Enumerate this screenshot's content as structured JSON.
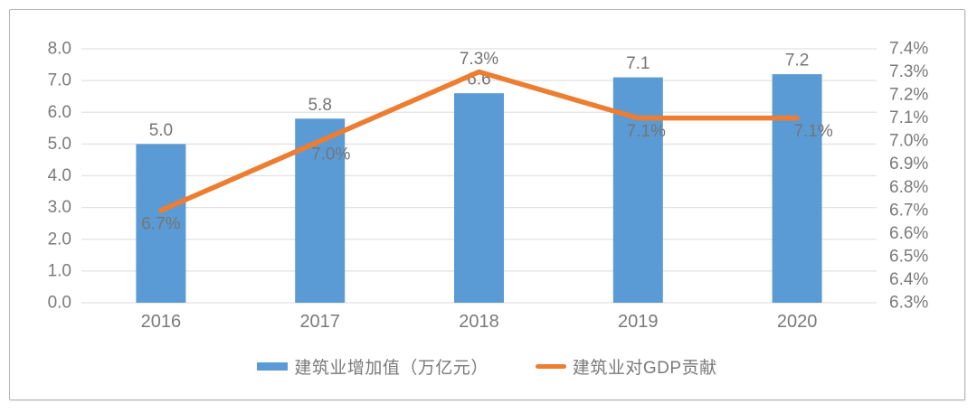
{
  "chart_data": {
    "type": "combo_bar_line",
    "categories": [
      "2016",
      "2017",
      "2018",
      "2019",
      "2020"
    ],
    "series": [
      {
        "name": "建筑业增加值（万亿元）",
        "type": "bar",
        "axis": "left",
        "color": "#5B9BD5",
        "values": [
          5.0,
          5.8,
          6.6,
          7.1,
          7.2
        ],
        "labels": [
          "5.0",
          "5.8",
          "6.6",
          "7.1",
          "7.2"
        ]
      },
      {
        "name": "建筑业对GDP贡献",
        "type": "line",
        "axis": "right",
        "color": "#ED7D31",
        "values": [
          6.7,
          7.0,
          7.3,
          7.1,
          7.1
        ],
        "labels": [
          "6.7%",
          "7.0%",
          "7.3%",
          "7.1%",
          "7.1%"
        ],
        "label_positions": [
          "below",
          "below",
          "above",
          "below",
          "below"
        ]
      }
    ],
    "left_axis": {
      "min": 0.0,
      "max": 8.0,
      "step": 1.0,
      "tick_labels": [
        "8.0",
        "7.0",
        "6.0",
        "5.0",
        "4.0",
        "3.0",
        "2.0",
        "1.0",
        "0.0"
      ]
    },
    "right_axis": {
      "min": 6.3,
      "max": 7.4,
      "step": 0.1,
      "tick_labels": [
        "7.4%",
        "7.3%",
        "7.2%",
        "7.1%",
        "7.0%",
        "6.9%",
        "6.8%",
        "6.7%",
        "6.6%",
        "6.5%",
        "6.4%",
        "6.3%"
      ]
    },
    "grid": true,
    "legend_position": "bottom",
    "colors": {
      "grid": "#e2e2e2",
      "axis_text": "#7a7a7a",
      "data_label_text": "#757575",
      "card_border": "#b5b5b5",
      "background": "#ffffff"
    }
  }
}
